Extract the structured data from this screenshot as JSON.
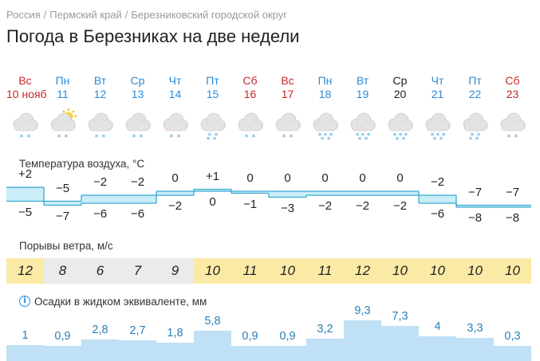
{
  "breadcrumb": [
    "Россия",
    "Пермский край",
    "Березниковский городской округ"
  ],
  "page_title": "Погода в Березниках на две недели",
  "days": [
    {
      "dow": "Вс",
      "date": "10 нояб",
      "type": "weekend",
      "icon": "cloud-light-snow-icon",
      "snow": "light"
    },
    {
      "dow": "Пн",
      "date": "11",
      "type": "weekday",
      "icon": "partly-sunny-light-snow-icon",
      "snow": "light"
    },
    {
      "dow": "Вт",
      "date": "12",
      "type": "weekday",
      "icon": "cloud-light-snow-icon",
      "snow": "light"
    },
    {
      "dow": "Ср",
      "date": "13",
      "type": "weekday",
      "icon": "cloud-light-snow-icon",
      "snow": "light"
    },
    {
      "dow": "Чт",
      "date": "14",
      "type": "weekday",
      "icon": "cloud-light-snow-icon",
      "snow": "light"
    },
    {
      "dow": "Пт",
      "date": "15",
      "type": "weekday",
      "icon": "cloud-snow-icon",
      "snow": "medium"
    },
    {
      "dow": "Сб",
      "date": "16",
      "type": "weekend",
      "icon": "cloud-light-snow-icon",
      "snow": "light"
    },
    {
      "dow": "Вс",
      "date": "17",
      "type": "weekend",
      "icon": "cloud-light-snow-icon",
      "snow": "light"
    },
    {
      "dow": "Пн",
      "date": "18",
      "type": "weekday",
      "icon": "cloud-heavy-snow-icon",
      "snow": "heavy"
    },
    {
      "dow": "Вт",
      "date": "19",
      "type": "weekday",
      "icon": "cloud-heavy-snow-icon",
      "snow": "heavy"
    },
    {
      "dow": "Ср",
      "date": "20",
      "type": "today",
      "icon": "cloud-heavy-snow-icon",
      "snow": "heavy"
    },
    {
      "dow": "Чт",
      "date": "21",
      "type": "weekday",
      "icon": "cloud-heavy-snow-icon",
      "snow": "heavy"
    },
    {
      "dow": "Пт",
      "date": "22",
      "type": "weekday",
      "icon": "cloud-snow-icon",
      "snow": "medium"
    },
    {
      "dow": "Сб",
      "date": "23",
      "type": "weekend",
      "icon": "cloud-light-snow-icon",
      "snow": "light"
    }
  ],
  "temperature": {
    "label": "Температура воздуха, °C",
    "max": [
      "+2",
      "−5",
      "−2",
      "−2",
      "0",
      "+1",
      "0",
      "0",
      "0",
      "0",
      "0",
      "−2",
      "−7",
      "−7"
    ],
    "min": [
      "−5",
      "−7",
      "−6",
      "−6",
      "−2",
      "0",
      "−1",
      "−3",
      "−2",
      "−2",
      "−2",
      "−6",
      "−8",
      "−8"
    ],
    "max_values": [
      2,
      -5,
      -2,
      -2,
      0,
      1,
      0,
      0,
      0,
      0,
      0,
      -2,
      -7,
      -7
    ],
    "min_values": [
      -5,
      -7,
      -6,
      -6,
      -2,
      0,
      -1,
      -3,
      -2,
      -2,
      -2,
      -6,
      -8,
      -8
    ]
  },
  "wind": {
    "label": "Порывы ветра, м/с",
    "values": [
      "12",
      "8",
      "6",
      "7",
      "9",
      "10",
      "11",
      "10",
      "11",
      "12",
      "10",
      "10",
      "10",
      "10"
    ],
    "highlight_color": "#fbeaa6",
    "plain_color": "#ebebeb"
  },
  "precipitation": {
    "label": "Осадки в жидком эквиваленте, мм",
    "values": [
      "1",
      "0,9",
      "2,8",
      "2,7",
      "1,8",
      "5,8",
      "0,9",
      "0,9",
      "3,2",
      "9,3",
      "7,3",
      "4",
      "3,3",
      "0,3"
    ],
    "numeric": [
      1,
      0.9,
      2.8,
      2.7,
      1.8,
      5.8,
      0.9,
      0.9,
      3.2,
      9.3,
      7.3,
      4,
      3.3,
      0.3
    ]
  },
  "colors": {
    "weekend": "#c62828",
    "weekday": "#2a8bd8",
    "temp_fill": "#c9eef8",
    "temp_line": "#3aa8d0",
    "precip_fill": "#bfe0f5"
  }
}
